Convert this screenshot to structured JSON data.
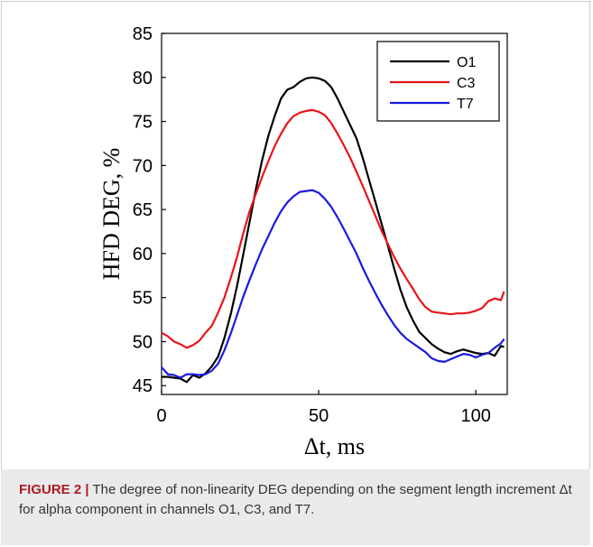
{
  "figure": {
    "caption_label": "FIGURE 2 |",
    "caption_text": "The degree of non-linearity DEG depending on the segment length increment Δt for alpha component in channels O1, C3, and T7."
  },
  "chart_data": {
    "type": "line",
    "title": "",
    "xlabel": "Δt, ms",
    "ylabel": "HFD DEG, %",
    "xlim": [
      0,
      110
    ],
    "ylim": [
      44,
      85
    ],
    "xticks": [
      0,
      50,
      100
    ],
    "yticks": [
      45,
      50,
      55,
      60,
      65,
      70,
      75,
      80,
      85
    ],
    "grid": false,
    "legend_position": "top-right",
    "series": [
      {
        "name": "O1",
        "color": "#000000",
        "x": [
          0,
          2,
          4,
          6,
          8,
          10,
          12,
          14,
          16,
          18,
          20,
          22,
          24,
          26,
          28,
          30,
          32,
          34,
          36,
          38,
          40,
          42,
          44,
          46,
          48,
          50,
          52,
          54,
          56,
          58,
          60,
          62,
          64,
          66,
          68,
          70,
          72,
          74,
          76,
          78,
          80,
          82,
          84,
          86,
          88,
          90,
          92,
          94,
          96,
          98,
          100,
          102,
          104,
          106,
          108,
          109
        ],
        "values": [
          46,
          46,
          45.9,
          45.8,
          45.4,
          46.2,
          45.9,
          46.4,
          47.2,
          48.3,
          50.4,
          53.1,
          56.3,
          59.9,
          63.6,
          67.3,
          70.6,
          73.4,
          75.6,
          77.6,
          78.6,
          78.9,
          79.5,
          79.9,
          80,
          79.9,
          79.6,
          78.9,
          77.6,
          76.1,
          74.6,
          73.1,
          70.9,
          68.4,
          65.9,
          63.4,
          60.9,
          58.3,
          55.9,
          53.9,
          52.4,
          51.1,
          50.4,
          49.7,
          49.2,
          48.8,
          48.6,
          48.9,
          49.1,
          48.9,
          48.7,
          48.6,
          48.7,
          48.4,
          49.5,
          49.4
        ]
      },
      {
        "name": "C3",
        "color": "#e8141a",
        "x": [
          0,
          2,
          4,
          6,
          8,
          10,
          12,
          14,
          16,
          18,
          20,
          22,
          24,
          26,
          28,
          30,
          32,
          34,
          36,
          38,
          40,
          42,
          44,
          46,
          48,
          50,
          52,
          54,
          56,
          58,
          60,
          62,
          64,
          66,
          68,
          70,
          72,
          74,
          76,
          78,
          80,
          82,
          84,
          86,
          88,
          90,
          92,
          94,
          96,
          98,
          100,
          102,
          104,
          106,
          108,
          109
        ],
        "values": [
          51,
          50.6,
          50,
          49.7,
          49.3,
          49.6,
          50.1,
          51,
          51.8,
          53.3,
          55,
          57.2,
          59.6,
          62.3,
          64.8,
          66.8,
          68.7,
          70.5,
          72.2,
          73.6,
          74.8,
          75.6,
          76,
          76.2,
          76.3,
          76.1,
          75.7,
          74.8,
          73.6,
          72.3,
          70.9,
          69.3,
          67.7,
          66,
          64.3,
          62.6,
          61.1,
          59.6,
          58.3,
          57.1,
          56,
          54.8,
          53.9,
          53.4,
          53.3,
          53.2,
          53.1,
          53.2,
          53.2,
          53.3,
          53.5,
          53.8,
          54.6,
          54.9,
          54.7,
          55.7
        ]
      },
      {
        "name": "T7",
        "color": "#1a1ae0",
        "x": [
          0,
          2,
          4,
          6,
          8,
          10,
          12,
          14,
          16,
          18,
          20,
          22,
          24,
          26,
          28,
          30,
          32,
          34,
          36,
          38,
          40,
          42,
          44,
          46,
          48,
          50,
          52,
          54,
          56,
          58,
          60,
          62,
          64,
          66,
          68,
          70,
          72,
          74,
          76,
          78,
          80,
          82,
          84,
          86,
          88,
          90,
          92,
          94,
          96,
          98,
          100,
          102,
          104,
          106,
          108,
          109
        ],
        "values": [
          47.1,
          46.3,
          46.2,
          45.9,
          46.3,
          46.3,
          46.2,
          46.3,
          46.7,
          47.5,
          49,
          50.9,
          53,
          55.1,
          57,
          58.8,
          60.5,
          62,
          63.5,
          64.8,
          65.8,
          66.5,
          67,
          67.1,
          67.2,
          66.9,
          66.2,
          65.3,
          64.1,
          62.8,
          61.4,
          60,
          58.4,
          56.9,
          55.5,
          54.2,
          53,
          51.9,
          51,
          50.3,
          49.8,
          49.3,
          48.8,
          48.1,
          47.8,
          47.7,
          48,
          48.3,
          48.6,
          48.5,
          48.2,
          48.5,
          48.7,
          49.3,
          49.8,
          50.3
        ]
      }
    ]
  }
}
